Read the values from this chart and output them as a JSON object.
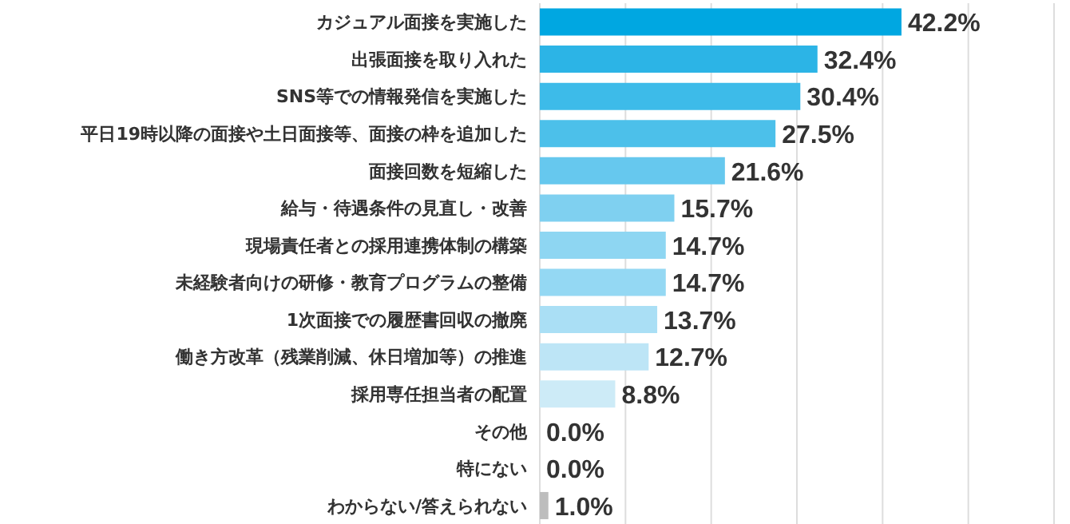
{
  "chart_data": {
    "type": "bar",
    "orientation": "horizontal",
    "categories": [
      "カジュアル面接を実施した",
      "出張面接を取り入れた",
      "SNS等での情報発信を実施した",
      "平日19時以降の面接や土日面接等、面接の枠を追加した",
      "面接回数を短縮した",
      "給与・待遇条件の見直し・改善",
      "現場責任者との採用連携体制の構築",
      "未経験者向けの研修・教育プログラムの整備",
      "1次面接での履歴書回収の撤廃",
      "働き方改革（残業削減、休日増加等）の推進",
      "採用専任担当者の配置",
      "その他",
      "特にない",
      "わからない/答えられない"
    ],
    "values": [
      42.2,
      32.4,
      30.4,
      27.5,
      21.6,
      15.7,
      14.7,
      14.7,
      13.7,
      12.7,
      8.8,
      0.0,
      0.0,
      1.0
    ],
    "value_labels": [
      "42.2%",
      "32.4%",
      "30.4%",
      "27.5%",
      "21.6%",
      "15.7%",
      "14.7%",
      "14.7%",
      "13.7%",
      "12.7%",
      "8.8%",
      "0.0%",
      "0.0%",
      "1.0%"
    ],
    "colors": [
      "#00a7e1",
      "#2cb4e6",
      "#3dbbe9",
      "#4cc0ea",
      "#66c8ee",
      "#7fd0f0",
      "#8ed6f2",
      "#94d8f3",
      "#aadff5",
      "#bde5f6",
      "#cdebf7",
      "#d9eff9",
      "#d9eff9",
      "#bdbdbd"
    ],
    "xlim": [
      0,
      60
    ],
    "xticks": [
      {
        "value": 0,
        "label": null
      },
      {
        "value": 10,
        "label": null
      },
      {
        "value": 20,
        "label": null
      },
      {
        "value": 30,
        "label": null
      },
      {
        "value": 40,
        "label": null
      },
      {
        "value": 50,
        "label": null
      },
      {
        "value": 60,
        "label": null
      }
    ],
    "tick_labels": "y",
    "grid": "x"
  }
}
